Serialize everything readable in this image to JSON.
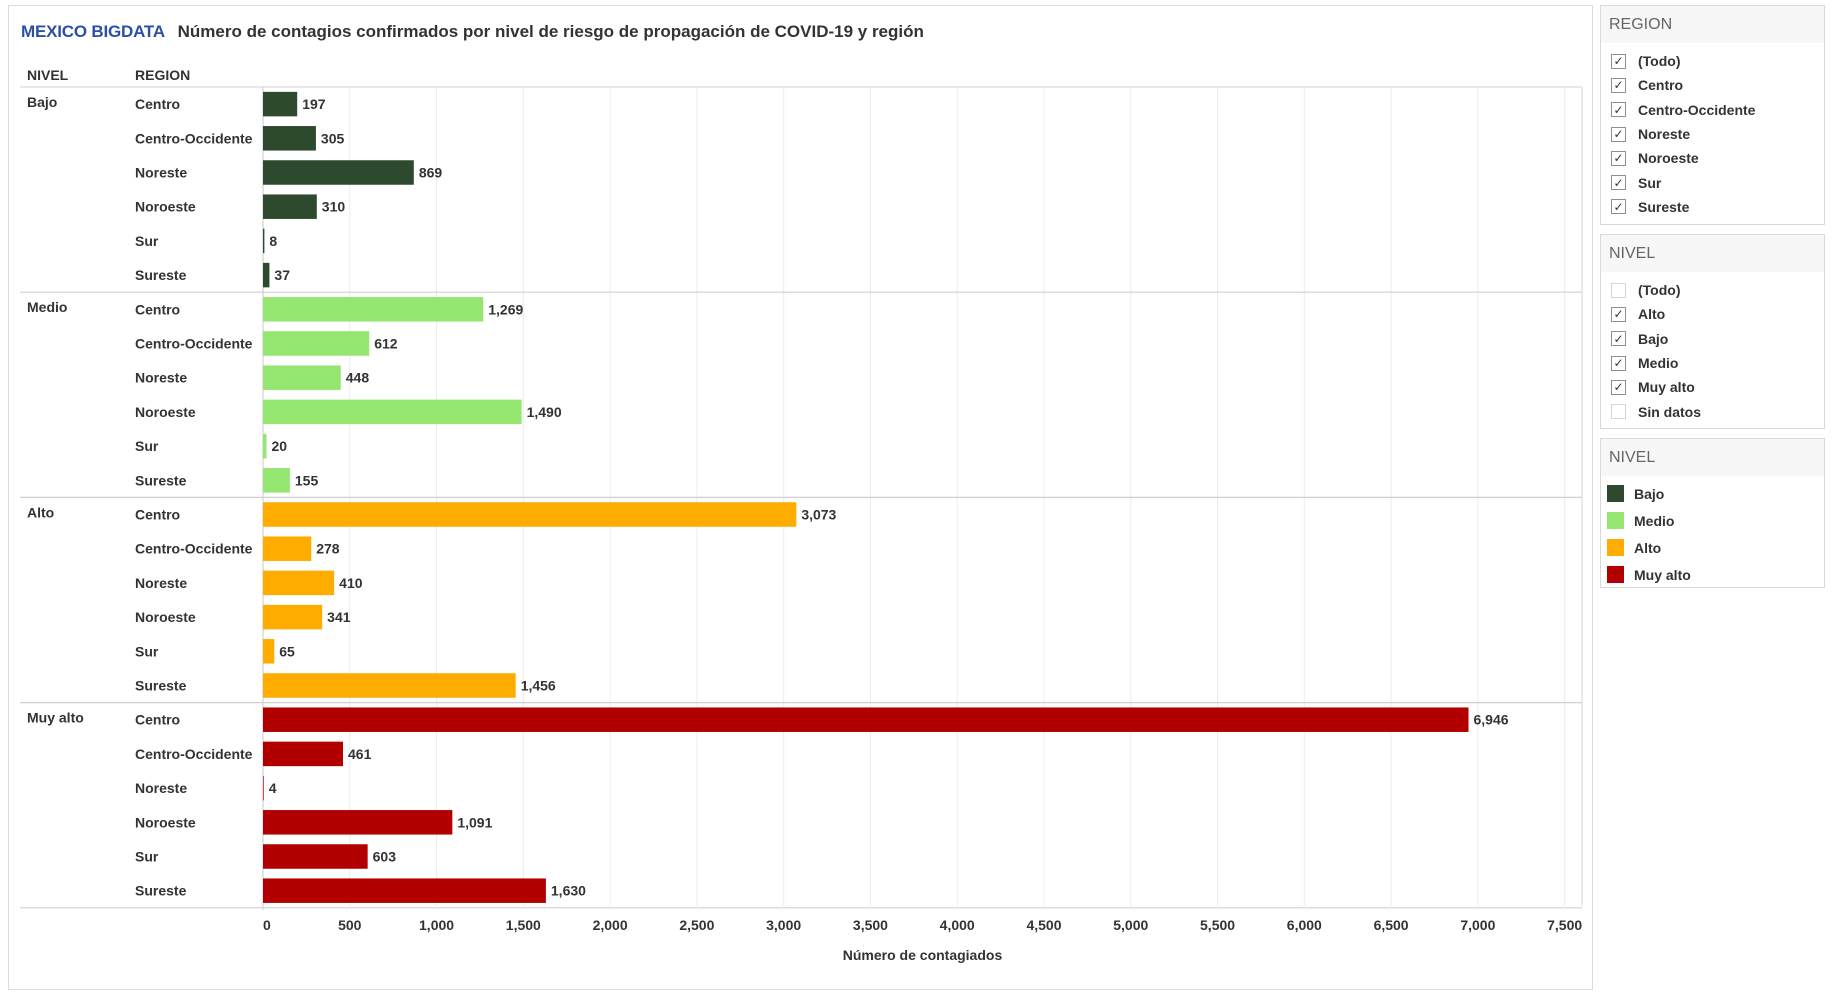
{
  "title": {
    "brand": "MEXICO BIGDATA",
    "text": "Número de contagios confirmados por nivel de riesgo de propagación de COVID-19 y región"
  },
  "colors": {
    "Bajo": "#2e4a2e",
    "Medio": "#95e670",
    "Alto": "#ffac00",
    "Muy alto": "#b20000",
    "brand": "#2e4fa8"
  },
  "chart_data": {
    "type": "bar",
    "orientation": "horizontal",
    "title": "Número de contagios confirmados por nivel de riesgo de propagación de COVID-19 y región",
    "row_headers": [
      "NIVEL",
      "REGION"
    ],
    "xlabel": "Número de contagiados",
    "xlim": [
      0,
      7600
    ],
    "ticks": [
      0,
      500,
      1000,
      1500,
      2000,
      2500,
      3000,
      3500,
      4000,
      4500,
      5000,
      5500,
      6000,
      6500,
      7000,
      7500
    ],
    "tick_labels": [
      "0",
      "500",
      "1,000",
      "1,500",
      "2,000",
      "2,500",
      "3,000",
      "3,500",
      "4,000",
      "4,500",
      "5,000",
      "5,500",
      "6,000",
      "6,500",
      "7,000",
      "7,500"
    ],
    "regions": [
      "Centro",
      "Centro-Occidente",
      "Noreste",
      "Noroeste",
      "Sur",
      "Sureste"
    ],
    "groups": [
      {
        "name": "Bajo",
        "values": [
          197,
          305,
          869,
          310,
          8,
          37
        ],
        "labels": [
          "197",
          "305",
          "869",
          "310",
          "8",
          "37"
        ]
      },
      {
        "name": "Medio",
        "values": [
          1269,
          612,
          448,
          1490,
          20,
          155
        ],
        "labels": [
          "1,269",
          "612",
          "448",
          "1,490",
          "20",
          "155"
        ]
      },
      {
        "name": "Alto",
        "values": [
          3073,
          278,
          410,
          341,
          65,
          1456
        ],
        "labels": [
          "3,073",
          "278",
          "410",
          "341",
          "65",
          "1,456"
        ]
      },
      {
        "name": "Muy alto",
        "values": [
          6946,
          461,
          4,
          1091,
          603,
          1630
        ],
        "labels": [
          "6,946",
          "461",
          "4",
          "1,091",
          "603",
          "1,630"
        ]
      }
    ]
  },
  "filters": {
    "region": {
      "title": "REGION",
      "items": [
        {
          "label": "(Todo)",
          "checked": true
        },
        {
          "label": "Centro",
          "checked": true
        },
        {
          "label": "Centro-Occidente",
          "checked": true
        },
        {
          "label": "Noreste",
          "checked": true
        },
        {
          "label": "Noroeste",
          "checked": true
        },
        {
          "label": "Sur",
          "checked": true
        },
        {
          "label": "Sureste",
          "checked": true
        }
      ]
    },
    "nivel": {
      "title": "NIVEL",
      "items": [
        {
          "label": "(Todo)",
          "checked": false
        },
        {
          "label": "Alto",
          "checked": true
        },
        {
          "label": "Bajo",
          "checked": true
        },
        {
          "label": "Medio",
          "checked": true
        },
        {
          "label": "Muy alto",
          "checked": true
        },
        {
          "label": "Sin datos",
          "checked": false
        }
      ]
    }
  },
  "legend": {
    "title": "NIVEL",
    "items": [
      {
        "label": "Bajo",
        "color": "#2e4a2e"
      },
      {
        "label": "Medio",
        "color": "#95e670"
      },
      {
        "label": "Alto",
        "color": "#ffac00"
      },
      {
        "label": "Muy alto",
        "color": "#b20000"
      }
    ]
  }
}
